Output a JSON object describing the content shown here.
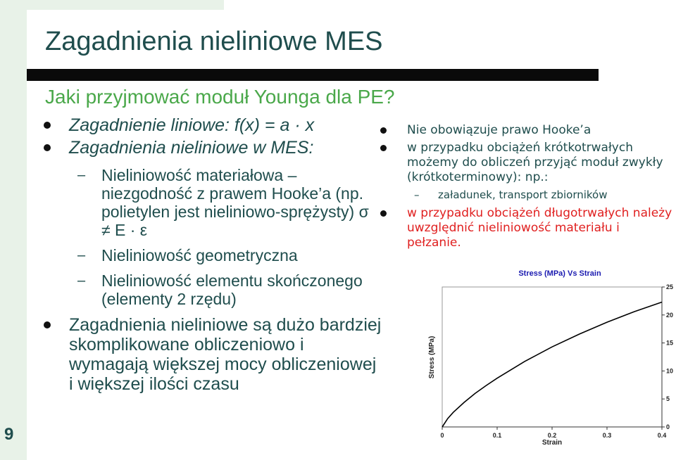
{
  "slide": {
    "number": "9",
    "title": "Zagadnienia nieliniowe MES",
    "subtitle": "Jaki przyjmować moduł Younga dla PE?"
  },
  "left": {
    "b1": "Zagadnienie liniowe: f(x) = a · x",
    "b2": "Zagadnienia nieliniowe w MES:",
    "s1": "Nieliniowość materiałowa – niezgodność z prawem Hooke’a (np. polietylen jest nieliniowo-sprężysty) σ ≠ E · ε",
    "s2": "Nieliniowość geometryczna",
    "s3": "Nieliniowość elementu skończonego (elementy 2 rzędu)",
    "b3": "Zagadnienia nieliniowe są dużo bardziej skomplikowane obliczeniowo i wymagają większej mocy obliczeniowej i większej ilości czasu",
    "dash": "–"
  },
  "right": {
    "r1": "Nie obowiązuje prawo Hooke’a",
    "r2": "w przypadku obciążeń krótkotrwałych możemy do obliczeń przyjąć moduł zwykły (krótkoterminowy): np.:",
    "r2sub": "załadunek, transport zbiorników",
    "r3": "w przypadku obciążeń długotrwałych należy uwzględnić nieliniowość materiału i pełzanie.",
    "dash": "–"
  },
  "colors": {
    "title": "#1f4d4d",
    "subtitle": "#4aa84a",
    "red": "#e02020",
    "band": "#e8f2e8"
  },
  "chart_data": {
    "type": "line",
    "title": "Stress (MPa) Vs Strain",
    "xlabel": "Strain",
    "ylabel": "Stress (MPa)",
    "xlim": [
      0,
      0.4
    ],
    "ylim": [
      0,
      25
    ],
    "xticks": [
      "0",
      "0.1",
      "0.2",
      "0.3",
      "0.4"
    ],
    "yticks": [
      "0",
      "5",
      "10",
      "15",
      "20",
      "25"
    ],
    "grid": false,
    "series": [
      {
        "x": [
          0,
          0.01,
          0.02,
          0.04,
          0.06,
          0.08,
          0.1,
          0.15,
          0.2,
          0.25,
          0.3,
          0.35,
          0.4
        ],
        "values": [
          0,
          1.5,
          2.6,
          4.4,
          6.0,
          7.4,
          8.7,
          11.7,
          14.3,
          16.6,
          18.7,
          20.6,
          22.3
        ]
      }
    ]
  }
}
